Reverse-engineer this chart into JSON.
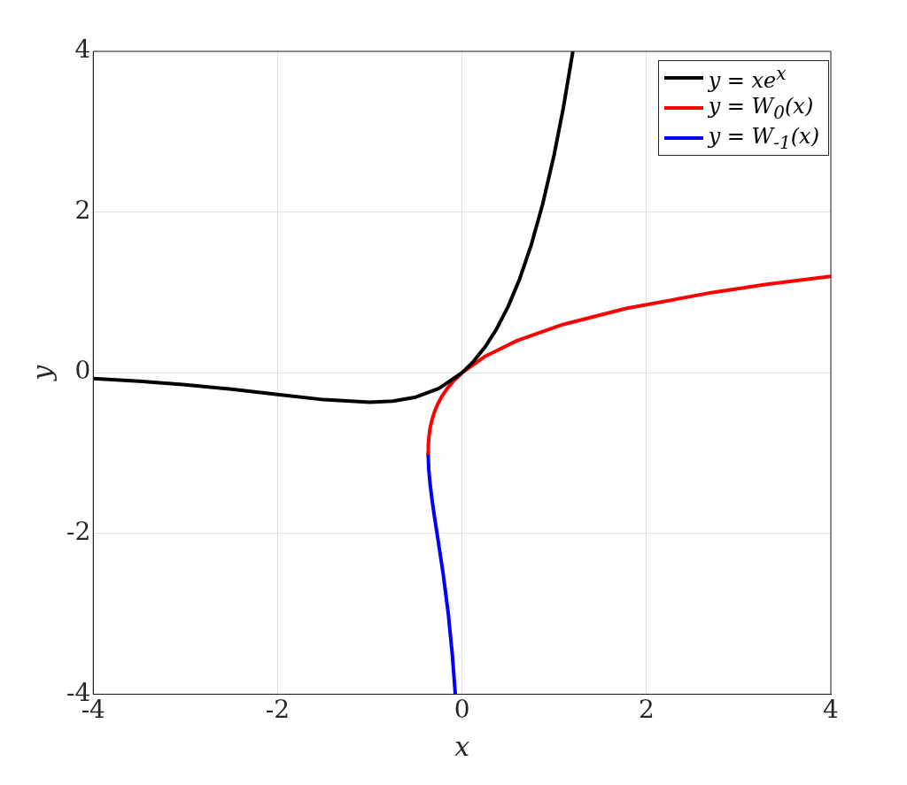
{
  "chart_data": {
    "type": "line",
    "xlabel": "x",
    "ylabel": "y",
    "xlim": [
      -4,
      4
    ],
    "ylim": [
      -4,
      4
    ],
    "xticks": [
      -4,
      -2,
      0,
      2,
      4
    ],
    "yticks": [
      -4,
      -2,
      0,
      2,
      4
    ],
    "grid": true,
    "legend": "top right",
    "marker": "none",
    "line_style": "solid",
    "series": [
      {
        "name": "y = xe$^{x}$",
        "color": "#000000",
        "x": [
          -4,
          -3.5,
          -3,
          -2.5,
          -2,
          -1.5,
          -1,
          -0.75,
          -0.5,
          -0.25,
          0,
          0.125,
          0.25,
          0.375,
          0.5,
          0.625,
          0.75,
          0.875,
          1,
          1.1,
          1.2
        ],
        "values": [
          -0.073,
          -0.106,
          -0.149,
          -0.205,
          -0.271,
          -0.335,
          -0.368,
          -0.354,
          -0.303,
          -0.195,
          0,
          0.142,
          0.321,
          0.546,
          0.824,
          1.168,
          1.588,
          2.101,
          2.718,
          3.304,
          3.984
        ]
      },
      {
        "name": "y = W$_{0}$(x)",
        "color": "#ff0000",
        "x": [
          -0.368,
          -0.366,
          -0.359,
          -0.348,
          -0.329,
          -0.303,
          -0.268,
          -0.222,
          -0.164,
          -0.09,
          0,
          0.244,
          0.597,
          1.093,
          1.78,
          2.718,
          3.304,
          4
        ],
        "values": [
          -1,
          -0.9,
          -0.8,
          -0.7,
          -0.6,
          -0.5,
          -0.4,
          -0.3,
          -0.2,
          -0.1,
          0,
          0.2,
          0.4,
          0.6,
          0.8,
          1,
          1.1,
          1.2
        ]
      },
      {
        "name": "y = W$_{-1}$(x)",
        "color": "#0000ff",
        "x": [
          -0.368,
          -0.361,
          -0.345,
          -0.323,
          -0.298,
          -0.271,
          -0.205,
          -0.149,
          -0.106,
          -0.073
        ],
        "values": [
          -1,
          -1.2,
          -1.4,
          -1.6,
          -1.8,
          -2,
          -2.5,
          -3,
          -3.5,
          -4
        ]
      }
    ]
  }
}
